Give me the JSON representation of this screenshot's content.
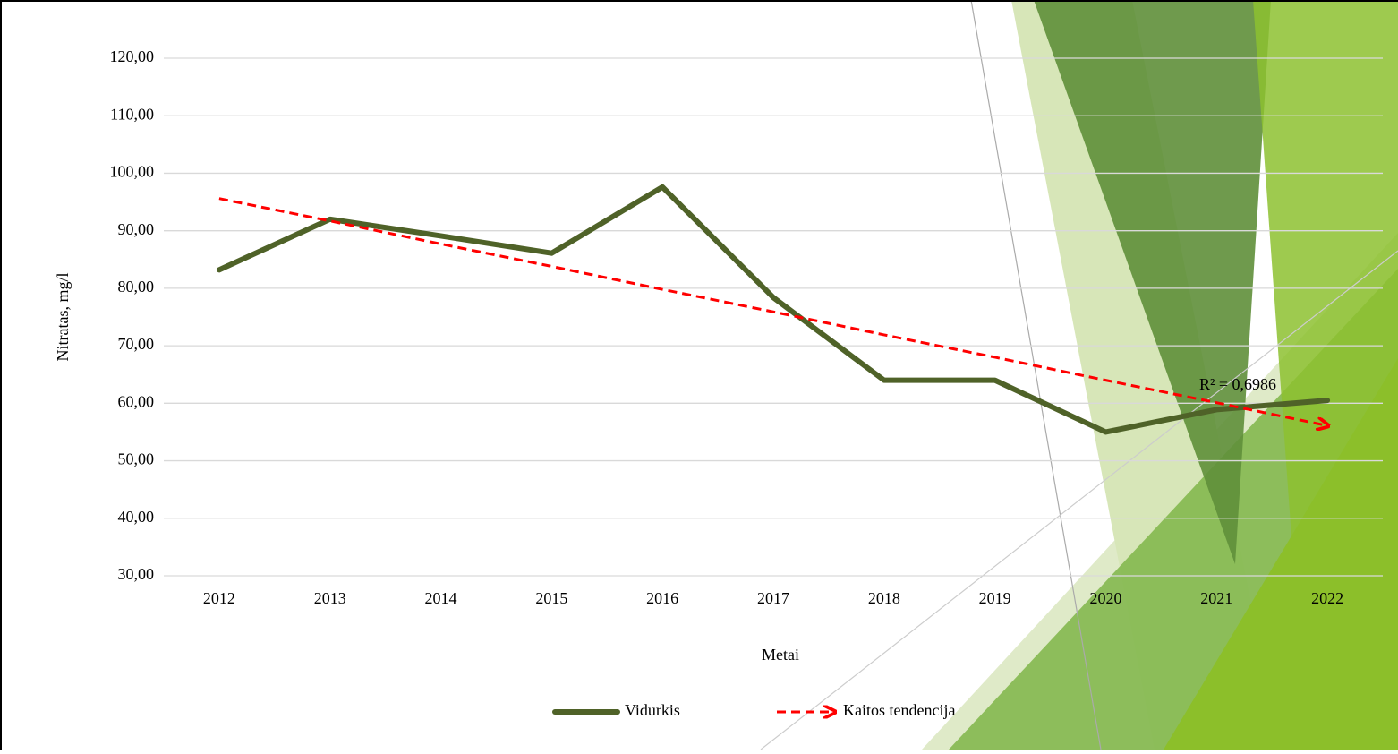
{
  "chart_data": {
    "type": "line",
    "x_label": "Metai",
    "y_label": "Nitratas, mg/l",
    "categories": [
      "2012",
      "2013",
      "2014",
      "2015",
      "2016",
      "2017",
      "2018",
      "2019",
      "2020",
      "2021",
      "2022"
    ],
    "series": [
      {
        "name": "Vidurkis",
        "color": "#4f6228",
        "values": [
          83.2,
          92.0,
          89.1,
          86.1,
          97.6,
          78.4,
          64.0,
          64.0,
          55.0,
          58.9,
          60.5
        ]
      },
      {
        "name": "Kaitos tendencija",
        "color": "#ff0000",
        "dashed": true,
        "values": [
          95.6,
          91.7,
          87.7,
          83.8,
          79.8,
          75.9,
          71.9,
          68.0,
          64.0,
          60.1,
          56.1
        ]
      }
    ],
    "annotation": "R² = 0,6986",
    "ylim": [
      30,
      120
    ],
    "yticks": [
      {
        "value": 30,
        "label": "30,00"
      },
      {
        "value": 40,
        "label": "40,00"
      },
      {
        "value": 50,
        "label": "50,00"
      },
      {
        "value": 60,
        "label": "60,00"
      },
      {
        "value": 70,
        "label": "70,00"
      },
      {
        "value": 80,
        "label": "80,00"
      },
      {
        "value": 90,
        "label": "90,00"
      },
      {
        "value": 100,
        "label": "100,00"
      },
      {
        "value": 110,
        "label": "110,00"
      },
      {
        "value": 120,
        "label": "120,00"
      }
    ],
    "grid": true,
    "legend": "bottom"
  }
}
